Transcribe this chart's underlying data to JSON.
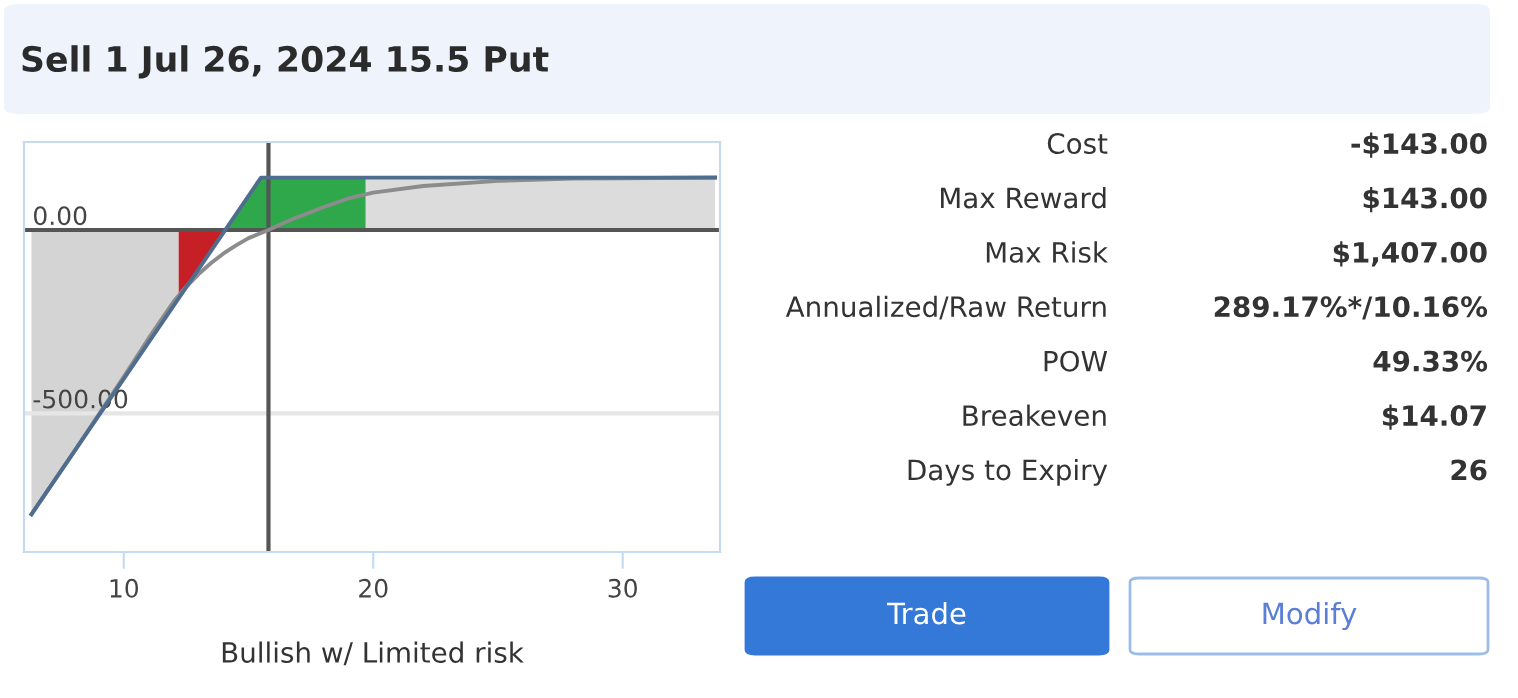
{
  "chart_data": [
    {
      "type": "line",
      "title": "Sell 1 Jul 26, 2024 15.5 Put",
      "xlabel": "Bullish w/ Limited risk",
      "xlim": [
        6,
        33.9
      ],
      "ylim": [
        -878,
        240
      ],
      "xticks": [
        10,
        20,
        30
      ],
      "yticks": [
        {
          "value": 0,
          "label": "0.00"
        },
        {
          "value": -500,
          "label": "-500.00"
        }
      ],
      "ref_lines": [
        {
          "axis": "y",
          "value": -500,
          "color": "#e6e6e6"
        },
        {
          "axis": "y",
          "value": 0,
          "color": "#555555"
        },
        {
          "axis": "x",
          "value": 15.8,
          "color": "#555555"
        }
      ],
      "series": [
        {
          "type": "area",
          "color": "#d4d4d4",
          "x": [
            6.3,
            12.2
          ],
          "values": [
            -775,
            -187
          ]
        },
        {
          "type": "area",
          "color": "#c62026",
          "x": [
            12.2,
            14.07
          ],
          "values": [
            -187,
            0
          ]
        },
        {
          "type": "area",
          "color": "#2ea84a",
          "x": [
            14.07,
            15.5,
            19.7
          ],
          "values": [
            0,
            143,
            143
          ]
        },
        {
          "type": "area",
          "color": "#dcdcdc",
          "x": [
            19.7,
            33.7
          ],
          "values": [
            143,
            143
          ]
        },
        {
          "type": "line",
          "color": "#8c8c8c",
          "x": [
            6.3,
            8,
            10,
            11,
            12,
            12.5,
            13,
            13.5,
            14,
            14.5,
            15,
            15.8,
            16.5,
            17,
            18,
            19,
            20,
            22,
            25,
            28,
            30,
            33.7
          ],
          "values": [
            -775,
            -605,
            -400,
            -295,
            -195,
            -155,
            -120,
            -90,
            -64,
            -42,
            -22,
            0,
            22,
            36,
            62,
            86,
            102,
            120,
            134,
            140,
            141,
            143
          ]
        },
        {
          "type": "line",
          "color": "#4f6d8f",
          "x": [
            6.3,
            15.5,
            33.7
          ],
          "values": [
            -775,
            143,
            143
          ]
        }
      ]
    },
    {
      "type": "other",
      "annotations": [
        "Cost",
        "-$143.00",
        "Max Reward",
        "$143.00",
        "Max Risk",
        "$1,407.00",
        "Annualized/Raw Return",
        "289.17%*/10.16%",
        "POW",
        "49.33%",
        "Breakeven",
        "$14.07",
        "Days to Expiry",
        "26",
        "Trade",
        "Modify"
      ]
    }
  ]
}
